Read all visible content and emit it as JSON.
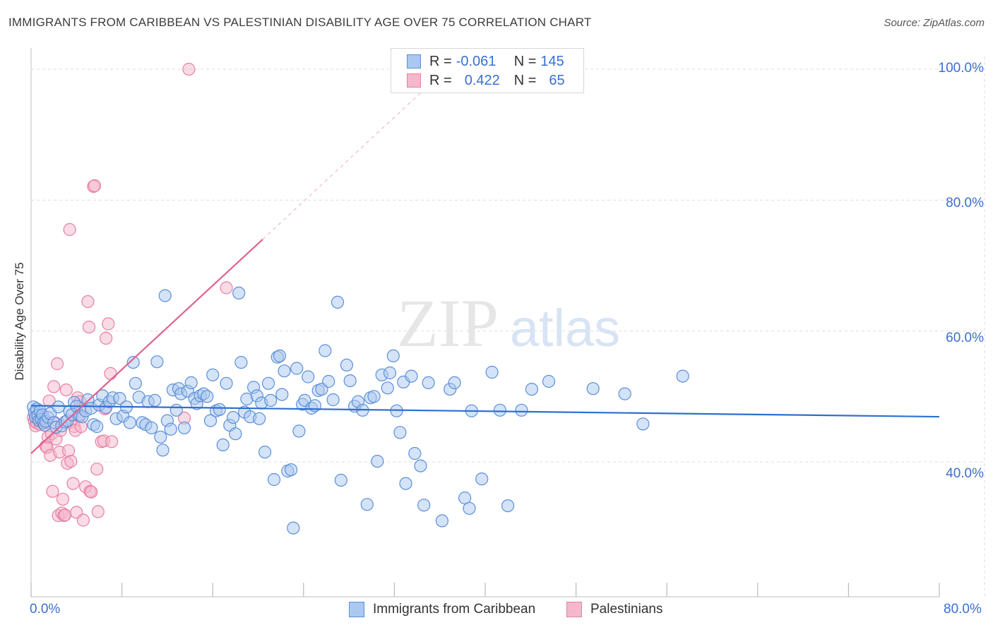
{
  "header": {
    "title": "IMMIGRANTS FROM CARIBBEAN VS PALESTINIAN DISABILITY AGE OVER 75 CORRELATION CHART",
    "source": "Source: ZipAtlas.com"
  },
  "watermark": {
    "zip": "ZIP",
    "atlas": "atlas"
  },
  "colors": {
    "blue_fill": "#aac8f0",
    "blue_stroke": "#5b8fd8",
    "blue_line": "#2d6fce",
    "pink_fill": "#f4b8cc",
    "pink_stroke": "#e87fa3",
    "pink_line": "#e0628f",
    "grid": "#dddddd",
    "axis_text": "#3a6fd0"
  },
  "legend_top": {
    "rows": [
      {
        "r_label": "R = ",
        "r_value": "-0.061",
        "n_label": "N = ",
        "n_value": "145"
      },
      {
        "r_label": "R = ",
        "r_value": "0.422",
        "n_label": "N = ",
        "n_value": "65"
      }
    ]
  },
  "legend_bottom": {
    "items": [
      {
        "label": "Immigrants from Caribbean"
      },
      {
        "label": "Palestinians"
      }
    ]
  },
  "chart_data": {
    "type": "scatter",
    "title": "IMMIGRANTS FROM CARIBBEAN VS PALESTINIAN DISABILITY AGE OVER 75 CORRELATION CHART",
    "xlabel": "",
    "ylabel": "Disability Age Over 75",
    "xlim": [
      0,
      80
    ],
    "ylim": [
      20,
      100
    ],
    "x_ticks": [
      0,
      8,
      16,
      24,
      32,
      40,
      48,
      56,
      64,
      72,
      80
    ],
    "x_tick_labels": {
      "0": "0.0%",
      "80": "80.0%"
    },
    "y_ticks": [
      40,
      60,
      80,
      100
    ],
    "y_tick_labels": [
      "40.0%",
      "60.0%",
      "80.0%",
      "100.0%"
    ],
    "grid": true,
    "legend_position": "top-center",
    "series": [
      {
        "name": "Immigrants from Caribbean",
        "color": "#5b8fd8",
        "R": -0.061,
        "N": 145,
        "trend": {
          "x": [
            0,
            80
          ],
          "y": [
            48.6,
            46.9
          ]
        },
        "points": [
          [
            0.2,
            48.4
          ],
          [
            0.3,
            47.5
          ],
          [
            0.4,
            46.8
          ],
          [
            0.5,
            48.1
          ],
          [
            0.6,
            47.1
          ],
          [
            0.7,
            46.3
          ],
          [
            0.8,
            47.8
          ],
          [
            0.9,
            46.5
          ],
          [
            1.0,
            47.2
          ],
          [
            1.1,
            46.0
          ],
          [
            1.2,
            45.6
          ],
          [
            1.3,
            46.2
          ],
          [
            1.5,
            46.8
          ],
          [
            1.7,
            47.4
          ],
          [
            2.0,
            46.0
          ],
          [
            2.2,
            45.3
          ],
          [
            2.4,
            48.4
          ],
          [
            2.7,
            45.5
          ],
          [
            3.0,
            46.1
          ],
          [
            3.2,
            46.3
          ],
          [
            3.4,
            47.7
          ],
          [
            3.6,
            47.2
          ],
          [
            3.8,
            49.1
          ],
          [
            4.0,
            48.5
          ],
          [
            4.3,
            47.1
          ],
          [
            4.5,
            46.9
          ],
          [
            4.8,
            47.8
          ],
          [
            5.0,
            49.5
          ],
          [
            5.3,
            48.2
          ],
          [
            5.5,
            45.7
          ],
          [
            5.8,
            45.4
          ],
          [
            6.0,
            48.7
          ],
          [
            6.3,
            50.1
          ],
          [
            6.6,
            48.3
          ],
          [
            6.9,
            49.2
          ],
          [
            7.2,
            49.8
          ],
          [
            7.5,
            46.6
          ],
          [
            7.8,
            49.7
          ],
          [
            8.1,
            47.0
          ],
          [
            8.4,
            48.4
          ],
          [
            8.7,
            46.0
          ],
          [
            9.0,
            55.2
          ],
          [
            9.2,
            52.0
          ],
          [
            9.5,
            49.9
          ],
          [
            9.8,
            46.0
          ],
          [
            10.1,
            45.7
          ],
          [
            10.3,
            49.2
          ],
          [
            10.6,
            45.2
          ],
          [
            10.9,
            49.4
          ],
          [
            11.1,
            55.3
          ],
          [
            11.4,
            43.8
          ],
          [
            11.6,
            41.8
          ],
          [
            11.8,
            65.4
          ],
          [
            12.0,
            46.3
          ],
          [
            12.3,
            45.0
          ],
          [
            12.5,
            51.0
          ],
          [
            12.8,
            47.9
          ],
          [
            13.0,
            51.2
          ],
          [
            13.2,
            50.4
          ],
          [
            13.5,
            45.2
          ],
          [
            13.8,
            50.8
          ],
          [
            14.1,
            52.1
          ],
          [
            14.4,
            49.7
          ],
          [
            14.6,
            48.9
          ],
          [
            14.9,
            50.1
          ],
          [
            15.2,
            50.4
          ],
          [
            15.5,
            50.0
          ],
          [
            15.8,
            46.3
          ],
          [
            16.0,
            53.3
          ],
          [
            16.3,
            47.8
          ],
          [
            16.6,
            48.0
          ],
          [
            16.9,
            42.6
          ],
          [
            17.2,
            52.0
          ],
          [
            17.5,
            45.6
          ],
          [
            17.8,
            46.8
          ],
          [
            18.0,
            44.3
          ],
          [
            18.3,
            65.8
          ],
          [
            18.5,
            55.2
          ],
          [
            18.8,
            47.6
          ],
          [
            19.0,
            49.6
          ],
          [
            19.3,
            46.9
          ],
          [
            19.6,
            51.4
          ],
          [
            19.9,
            50.1
          ],
          [
            20.1,
            46.6
          ],
          [
            20.3,
            49.0
          ],
          [
            20.6,
            41.5
          ],
          [
            20.9,
            52.0
          ],
          [
            21.1,
            49.4
          ],
          [
            21.4,
            37.3
          ],
          [
            21.7,
            56.0
          ],
          [
            21.9,
            56.2
          ],
          [
            22.1,
            50.3
          ],
          [
            22.3,
            53.9
          ],
          [
            22.6,
            38.6
          ],
          [
            22.9,
            38.8
          ],
          [
            23.1,
            29.9
          ],
          [
            23.4,
            54.3
          ],
          [
            23.6,
            44.7
          ],
          [
            23.9,
            48.8
          ],
          [
            24.1,
            49.4
          ],
          [
            24.4,
            53.0
          ],
          [
            24.7,
            48.2
          ],
          [
            25.0,
            48.6
          ],
          [
            25.3,
            50.9
          ],
          [
            25.6,
            51.1
          ],
          [
            25.9,
            57.0
          ],
          [
            26.2,
            52.3
          ],
          [
            26.6,
            49.5
          ],
          [
            27.0,
            64.4
          ],
          [
            27.3,
            37.2
          ],
          [
            27.8,
            54.8
          ],
          [
            28.1,
            52.4
          ],
          [
            28.5,
            48.5
          ],
          [
            28.8,
            49.2
          ],
          [
            29.2,
            47.9
          ],
          [
            29.6,
            33.5
          ],
          [
            29.9,
            49.8
          ],
          [
            30.2,
            50.0
          ],
          [
            30.5,
            40.1
          ],
          [
            30.9,
            53.3
          ],
          [
            31.4,
            51.3
          ],
          [
            31.6,
            53.6
          ],
          [
            31.9,
            56.2
          ],
          [
            32.2,
            47.8
          ],
          [
            32.5,
            44.5
          ],
          [
            32.8,
            52.2
          ],
          [
            33.0,
            36.7
          ],
          [
            33.5,
            53.1
          ],
          [
            33.8,
            41.3
          ],
          [
            34.3,
            39.4
          ],
          [
            34.6,
            33.4
          ],
          [
            35.0,
            52.1
          ],
          [
            36.2,
            31.0
          ],
          [
            36.9,
            51.1
          ],
          [
            37.3,
            52.1
          ],
          [
            38.2,
            34.5
          ],
          [
            38.6,
            32.9
          ],
          [
            38.8,
            47.8
          ],
          [
            39.7,
            37.4
          ],
          [
            40.6,
            53.7
          ],
          [
            41.3,
            47.9
          ],
          [
            42.0,
            33.3
          ],
          [
            43.2,
            47.9
          ],
          [
            44.1,
            51.1
          ],
          [
            45.6,
            52.3
          ],
          [
            49.5,
            51.2
          ],
          [
            52.3,
            50.4
          ],
          [
            53.9,
            45.8
          ],
          [
            57.4,
            53.1
          ]
        ]
      },
      {
        "name": "Palestinians",
        "color": "#e87fa3",
        "R": 0.422,
        "N": 65,
        "trend": {
          "x": [
            0,
            20.4
          ],
          "y": [
            41.3,
            74.0
          ]
        },
        "trend_dashed": {
          "x": [
            20.4,
            35
          ],
          "y": [
            74.0,
            97.5
          ]
        },
        "points": [
          [
            0.2,
            46.8
          ],
          [
            0.3,
            46.2
          ],
          [
            0.4,
            45.5
          ],
          [
            0.5,
            46.0
          ],
          [
            0.6,
            46.6
          ],
          [
            0.7,
            47.1
          ],
          [
            0.8,
            45.7
          ],
          [
            0.9,
            46.4
          ],
          [
            1.0,
            47.0
          ],
          [
            1.1,
            45.9
          ],
          [
            1.2,
            46.3
          ],
          [
            1.3,
            42.4
          ],
          [
            1.4,
            42.2
          ],
          [
            1.5,
            43.8
          ],
          [
            1.6,
            49.3
          ],
          [
            1.7,
            41.0
          ],
          [
            1.8,
            44.3
          ],
          [
            1.9,
            35.5
          ],
          [
            2.0,
            51.5
          ],
          [
            2.1,
            46.0
          ],
          [
            2.2,
            43.5
          ],
          [
            2.3,
            55.0
          ],
          [
            2.4,
            31.8
          ],
          [
            2.5,
            41.5
          ],
          [
            2.6,
            44.8
          ],
          [
            2.7,
            32.2
          ],
          [
            2.8,
            34.3
          ],
          [
            2.9,
            31.8
          ],
          [
            3.0,
            31.9
          ],
          [
            3.1,
            51.0
          ],
          [
            3.2,
            39.8
          ],
          [
            3.3,
            41.7
          ],
          [
            3.4,
            75.5
          ],
          [
            3.5,
            40.1
          ],
          [
            3.6,
            46.1
          ],
          [
            3.7,
            36.7
          ],
          [
            3.8,
            45.4
          ],
          [
            3.9,
            44.8
          ],
          [
            4.0,
            32.3
          ],
          [
            4.1,
            49.8
          ],
          [
            4.2,
            47.1
          ],
          [
            4.3,
            49.2
          ],
          [
            4.4,
            45.4
          ],
          [
            4.6,
            31.1
          ],
          [
            4.8,
            36.2
          ],
          [
            5.0,
            64.5
          ],
          [
            5.1,
            60.6
          ],
          [
            5.2,
            35.5
          ],
          [
            5.3,
            35.4
          ],
          [
            5.5,
            82.1
          ],
          [
            5.6,
            82.2
          ],
          [
            5.8,
            38.9
          ],
          [
            5.9,
            32.4
          ],
          [
            6.2,
            43.1
          ],
          [
            6.4,
            43.2
          ],
          [
            6.5,
            48.1
          ],
          [
            6.6,
            58.9
          ],
          [
            6.8,
            61.1
          ],
          [
            7.0,
            53.5
          ],
          [
            7.1,
            43.1
          ],
          [
            13.5,
            46.7
          ],
          [
            17.2,
            66.6
          ],
          [
            13.9,
            100.0
          ],
          [
            4.3,
            48.3
          ],
          [
            0.9,
            46.2
          ]
        ]
      }
    ]
  }
}
